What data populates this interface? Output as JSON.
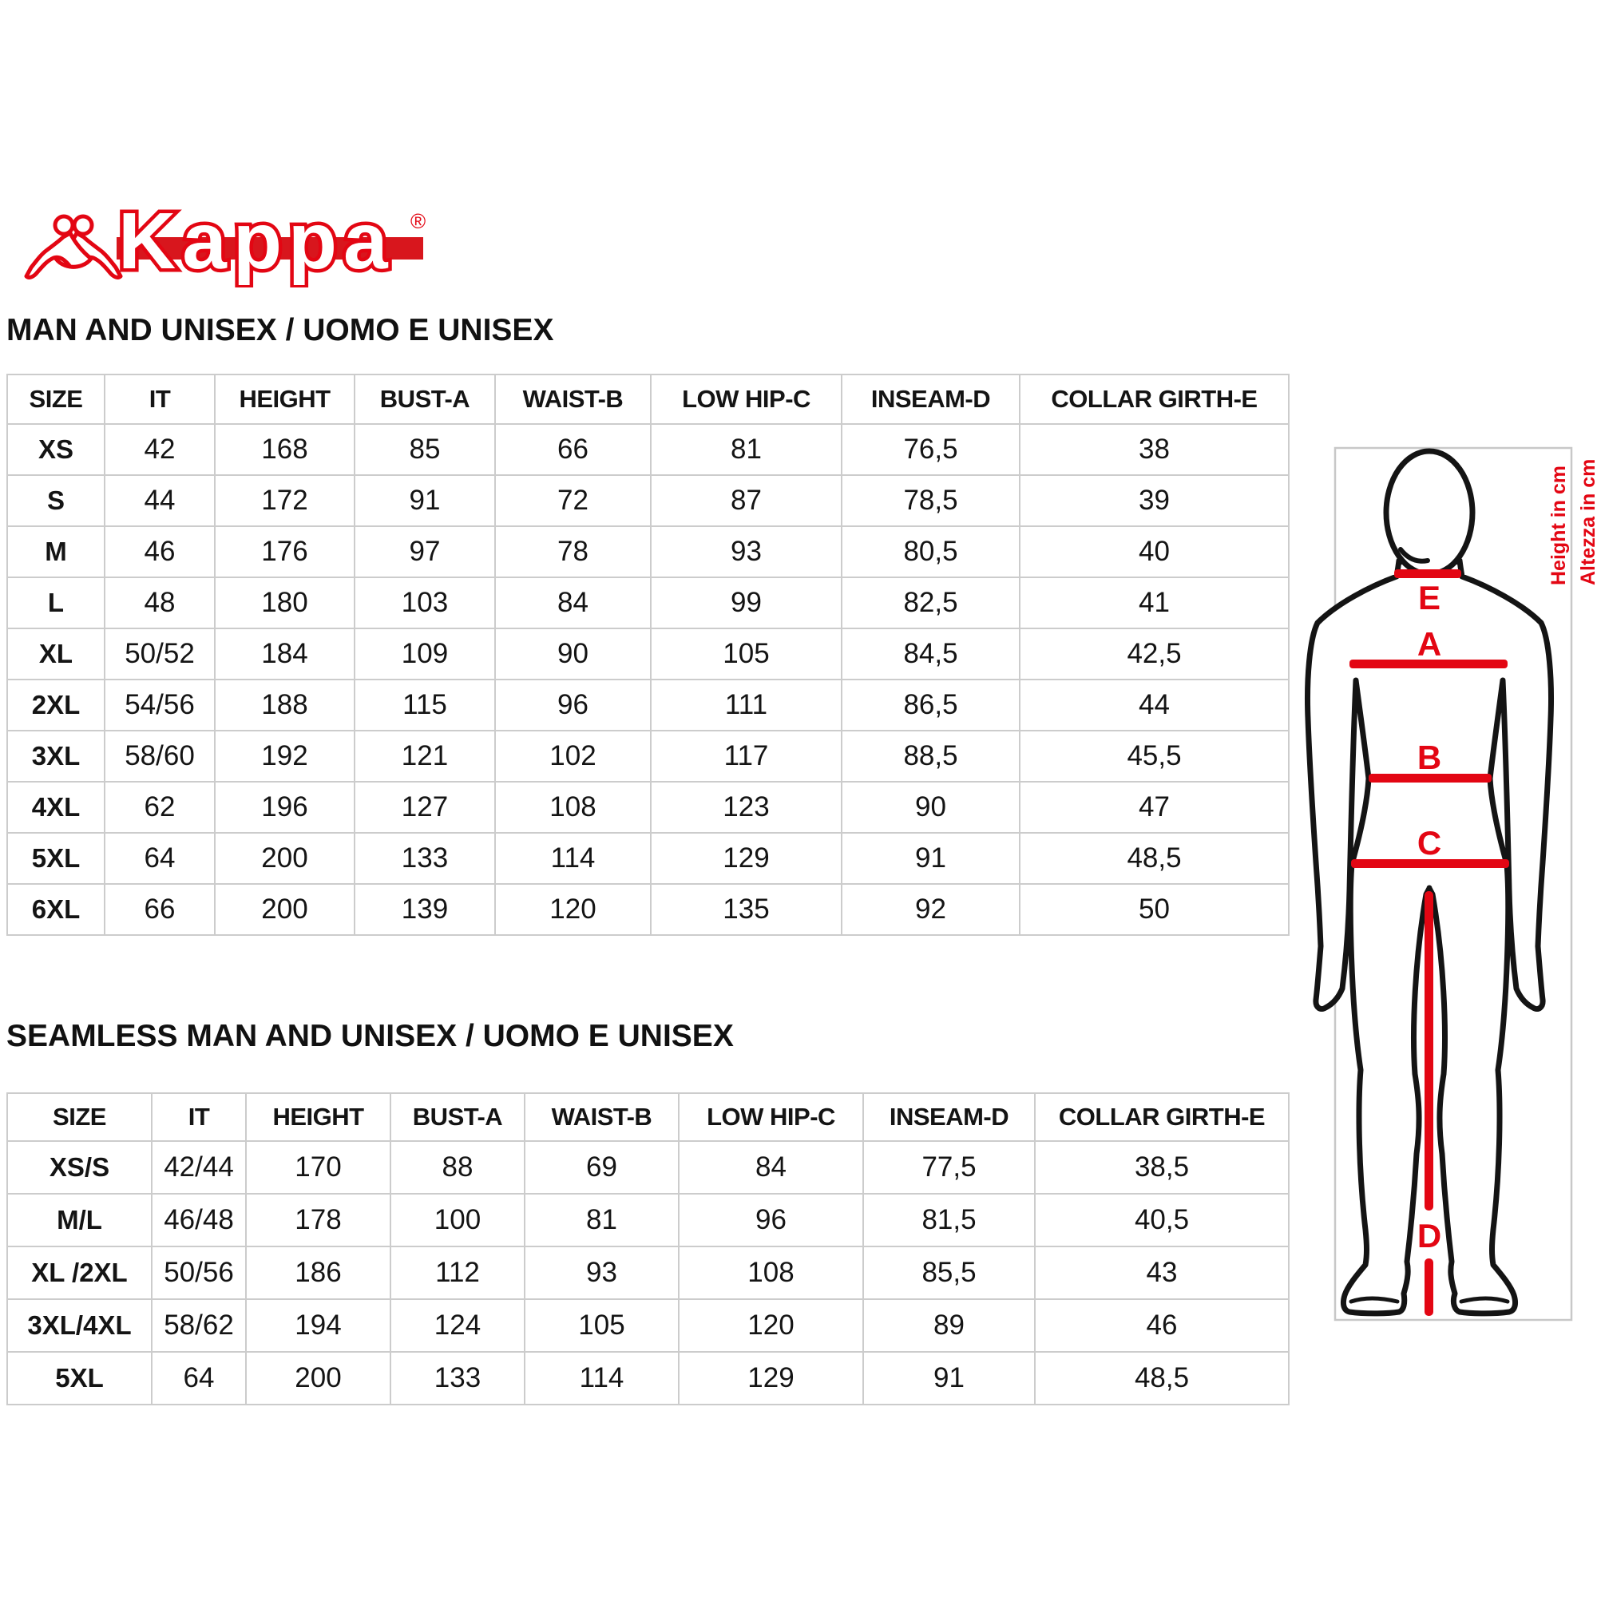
{
  "brand": {
    "name": "Kappa",
    "registered_mark": "®",
    "accent_color": "#e30613"
  },
  "sections": [
    {
      "title": "MAN AND UNISEX / UOMO E UNISEX",
      "table": {
        "headers": [
          "SIZE",
          "IT",
          "HEIGHT",
          "BUST-A",
          "WAIST-B",
          "LOW HIP-C",
          "INSEAM-D",
          "COLLAR GIRTH-E"
        ],
        "rows": [
          [
            "XS",
            "42",
            "168",
            "85",
            "66",
            "81",
            "76,5",
            "38"
          ],
          [
            "S",
            "44",
            "172",
            "91",
            "72",
            "87",
            "78,5",
            "39"
          ],
          [
            "M",
            "46",
            "176",
            "97",
            "78",
            "93",
            "80,5",
            "40"
          ],
          [
            "L",
            "48",
            "180",
            "103",
            "84",
            "99",
            "82,5",
            "41"
          ],
          [
            "XL",
            "50/52",
            "184",
            "109",
            "90",
            "105",
            "84,5",
            "42,5"
          ],
          [
            "2XL",
            "54/56",
            "188",
            "115",
            "96",
            "111",
            "86,5",
            "44"
          ],
          [
            "3XL",
            "58/60",
            "192",
            "121",
            "102",
            "117",
            "88,5",
            "45,5"
          ],
          [
            "4XL",
            "62",
            "196",
            "127",
            "108",
            "123",
            "90",
            "47"
          ],
          [
            "5XL",
            "64",
            "200",
            "133",
            "114",
            "129",
            "91",
            "48,5"
          ],
          [
            "6XL",
            "66",
            "200",
            "139",
            "120",
            "135",
            "92",
            "50"
          ]
        ]
      }
    },
    {
      "title": "SEAMLESS MAN AND UNISEX / UOMO E UNISEX",
      "table": {
        "headers": [
          "SIZE",
          "IT",
          "HEIGHT",
          "BUST-A",
          "WAIST-B",
          "LOW HIP-C",
          "INSEAM-D",
          "COLLAR GIRTH-E"
        ],
        "rows": [
          [
            "XS/S",
            "42/44",
            "170",
            "88",
            "69",
            "84",
            "77,5",
            "38,5"
          ],
          [
            "M/L",
            "46/48",
            "178",
            "100",
            "81",
            "96",
            "81,5",
            "40,5"
          ],
          [
            "XL /2XL",
            "50/56",
            "186",
            "112",
            "93",
            "108",
            "85,5",
            "43"
          ],
          [
            "3XL/4XL",
            "58/62",
            "194",
            "124",
            "105",
            "120",
            "89",
            "46"
          ],
          [
            "5XL",
            "64",
            "200",
            "133",
            "114",
            "129",
            "91",
            "48,5"
          ]
        ]
      }
    }
  ],
  "diagram": {
    "measure_labels": {
      "collar": "E",
      "bust": "A",
      "waist": "B",
      "low_hip": "C",
      "inseam": "D"
    },
    "side_note_en": "Height in cm",
    "side_note_it": "Altezza in cm",
    "accent_color": "#e30613",
    "outline_color": "#141414",
    "frame_color": "#c8c8c8"
  }
}
